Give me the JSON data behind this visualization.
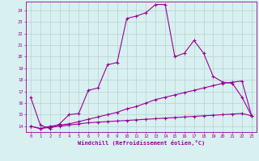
{
  "xlabel": "Windchill (Refroidissement éolien,°C)",
  "x": [
    0,
    1,
    2,
    3,
    4,
    5,
    6,
    7,
    8,
    9,
    10,
    11,
    12,
    13,
    14,
    15,
    16,
    17,
    18,
    19,
    20,
    21,
    22,
    23
  ],
  "line1": [
    16.5,
    14.1,
    13.8,
    14.2,
    15.0,
    15.1,
    17.1,
    17.3,
    19.3,
    19.5,
    23.3,
    23.5,
    23.8,
    24.5,
    24.5,
    20.0,
    20.3,
    21.4,
    20.3,
    18.3,
    17.8,
    17.7,
    16.5,
    14.9
  ],
  "line2": [
    14.0,
    13.8,
    14.0,
    14.1,
    14.2,
    14.4,
    14.6,
    14.8,
    15.0,
    15.2,
    15.5,
    15.7,
    16.0,
    16.3,
    16.5,
    16.7,
    16.9,
    17.1,
    17.3,
    17.5,
    17.7,
    17.8,
    17.9,
    14.9
  ],
  "line3": [
    14.0,
    13.8,
    13.9,
    14.0,
    14.1,
    14.2,
    14.3,
    14.35,
    14.4,
    14.45,
    14.5,
    14.55,
    14.6,
    14.65,
    14.7,
    14.75,
    14.8,
    14.85,
    14.9,
    14.95,
    15.0,
    15.05,
    15.1,
    14.9
  ],
  "line_color": "#990099",
  "bg_color": "#d8f0f0",
  "grid_color": "#b8d0d0",
  "ylim": [
    13.5,
    24.75
  ],
  "xlim": [
    -0.5,
    23.5
  ],
  "yticks": [
    14,
    15,
    16,
    17,
    18,
    19,
    20,
    21,
    22,
    23,
    24
  ],
  "xticks": [
    0,
    1,
    2,
    3,
    4,
    5,
    6,
    7,
    8,
    9,
    10,
    11,
    12,
    13,
    14,
    15,
    16,
    17,
    18,
    19,
    20,
    21,
    22,
    23
  ]
}
